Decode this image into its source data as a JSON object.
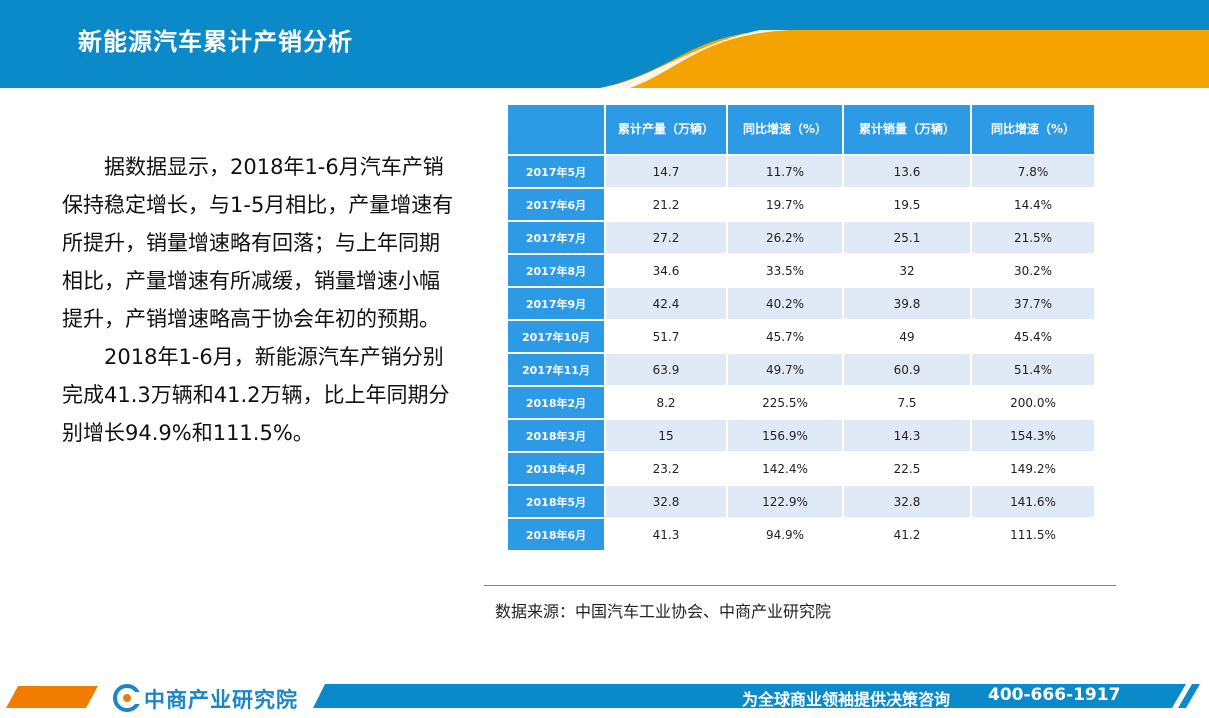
{
  "header": {
    "title": "新能源汽车累计产销分析"
  },
  "body": {
    "paragraphs": [
      "据数据显示，2018年1-6月汽车产销保持稳定增长，与1-5月相比，产量增速有所提升，销量增速略有回落；与上年同期相比，产量增速有所减缓，销量增速小幅提升，产销增速略高于协会年初的预期。",
      "2018年1-6月，新能源汽车产销分别完成41.3万辆和41.2万辆，比上年同期分别增长94.9%和111.5%。"
    ]
  },
  "table": {
    "headers": [
      "",
      "累计产量（万辆）",
      "同比增速（%）",
      "累计销量（万辆）",
      "同比增速（%）"
    ],
    "rows": [
      [
        "2017年5月",
        "14.7",
        "11.7%",
        "13.6",
        "7.8%"
      ],
      [
        "2017年6月",
        "21.2",
        "19.7%",
        "19.5",
        "14.4%"
      ],
      [
        "2017年7月",
        "27.2",
        "26.2%",
        "25.1",
        "21.5%"
      ],
      [
        "2017年8月",
        "34.6",
        "33.5%",
        "32",
        "30.2%"
      ],
      [
        "2017年9月",
        "42.4",
        "40.2%",
        "39.8",
        "37.7%"
      ],
      [
        "2017年10月",
        "51.7",
        "45.7%",
        "49",
        "45.4%"
      ],
      [
        "2017年11月",
        "63.9",
        "49.7%",
        "60.9",
        "51.4%"
      ],
      [
        "2018年2月",
        "8.2",
        "225.5%",
        "7.5",
        "200.0%"
      ],
      [
        "2018年3月",
        "15",
        "156.9%",
        "14.3",
        "154.3%"
      ],
      [
        "2018年4月",
        "23.2",
        "142.4%",
        "22.5",
        "149.2%"
      ],
      [
        "2018年5月",
        "32.8",
        "122.9%",
        "32.8",
        "141.6%"
      ],
      [
        "2018年6月",
        "41.3",
        "94.9%",
        "41.2",
        "111.5%"
      ]
    ],
    "source": "数据来源：中国汽车工业协会、中商产业研究院"
  },
  "footer": {
    "logo_text": "中商产业研究院",
    "logo_icon": "cc-logo-icon",
    "slogan": "为全球商业领袖提供决策咨询",
    "phone": "400-666-1917"
  },
  "colors": {
    "primary_blue": "#0b8ac9",
    "accent_orange": "#f5a300",
    "table_blue": "#2d9ae6",
    "row_tint": "#dfeaf6"
  }
}
